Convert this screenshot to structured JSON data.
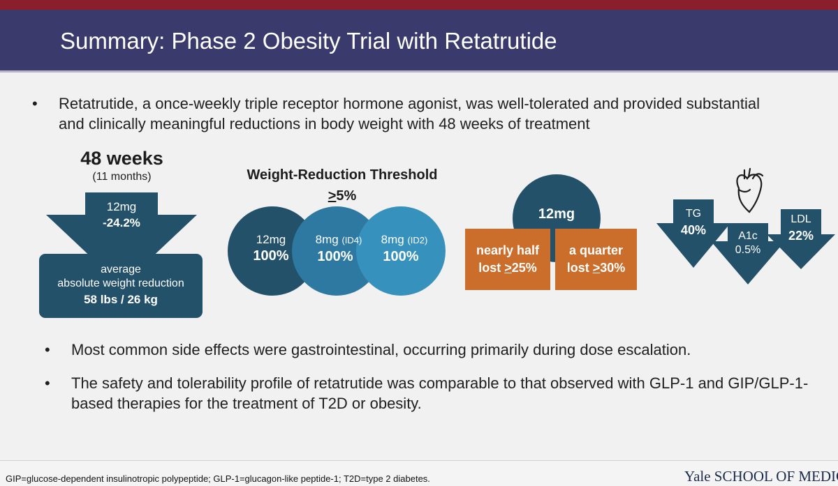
{
  "slide": {
    "title": "Summary: Phase 2 Obesity Trial with Retatrutide"
  },
  "bullets": {
    "main": "Retatrutide, a once-weekly triple receptor hormone agonist, was well-tolerated and provided substantial and clinically meaningful reductions in body weight with 48 weeks of treatment",
    "side_effects": "Most common side effects were gastrointestinal, occurring primarily during dose escalation.",
    "safety": "The safety and tolerability profile of retatrutide was comparable to that observed with GLP-1 and GIP/GLP-1-based therapies for the treatment of T2D or obesity.",
    "marker": "•"
  },
  "duration": {
    "headline": "48 weeks",
    "subtext": "(11 months)",
    "dose": "12mg",
    "change": "-24.2%",
    "box_line1": "average",
    "box_line2": "absolute weight reduction",
    "box_line3": "58 lbs / 26 kg"
  },
  "threshold": {
    "title": "Weight-Reduction Threshold",
    "sub_sign": ">",
    "sub_value": "5%",
    "circles": [
      {
        "dose": "12mg",
        "tag": "",
        "pct": "100%",
        "color": "#24516a"
      },
      {
        "dose": "8mg",
        "tag": "(ID4)",
        "pct": "100%",
        "color": "#2d79a1"
      },
      {
        "dose": "8mg",
        "tag": "(ID2)",
        "pct": "100%",
        "color": "#3692bd"
      }
    ]
  },
  "dose_12mg": {
    "label": "12mg",
    "box1_line1": "nearly half",
    "box1_prefix": "lost ",
    "box1_sign": ">",
    "box1_value": "25%",
    "box2_line1": "a quarter",
    "box2_prefix": "lost ",
    "box2_sign": ">",
    "box2_value": "30%"
  },
  "markers": {
    "tg_label": "TG",
    "tg_value": "40%",
    "a1c_label": "A1c",
    "a1c_value": "0.5%",
    "ldl_label": "LDL",
    "ldl_value": "22%",
    "icon": "heart-icon"
  },
  "footer": {
    "footnote": "GIP=glucose-dependent insulinotropic polypeptide; GLP-1=glucagon-like peptide-1; T2D=type 2 diabetes.",
    "logo_bold": "Yale",
    "logo_rest": " SCHOOL OF MEDICINE"
  },
  "colors": {
    "title_bar": "#3a3a6c",
    "top_strip": "#8a1e2c",
    "dark_teal": "#24516a",
    "orange": "#cc6e2b"
  }
}
